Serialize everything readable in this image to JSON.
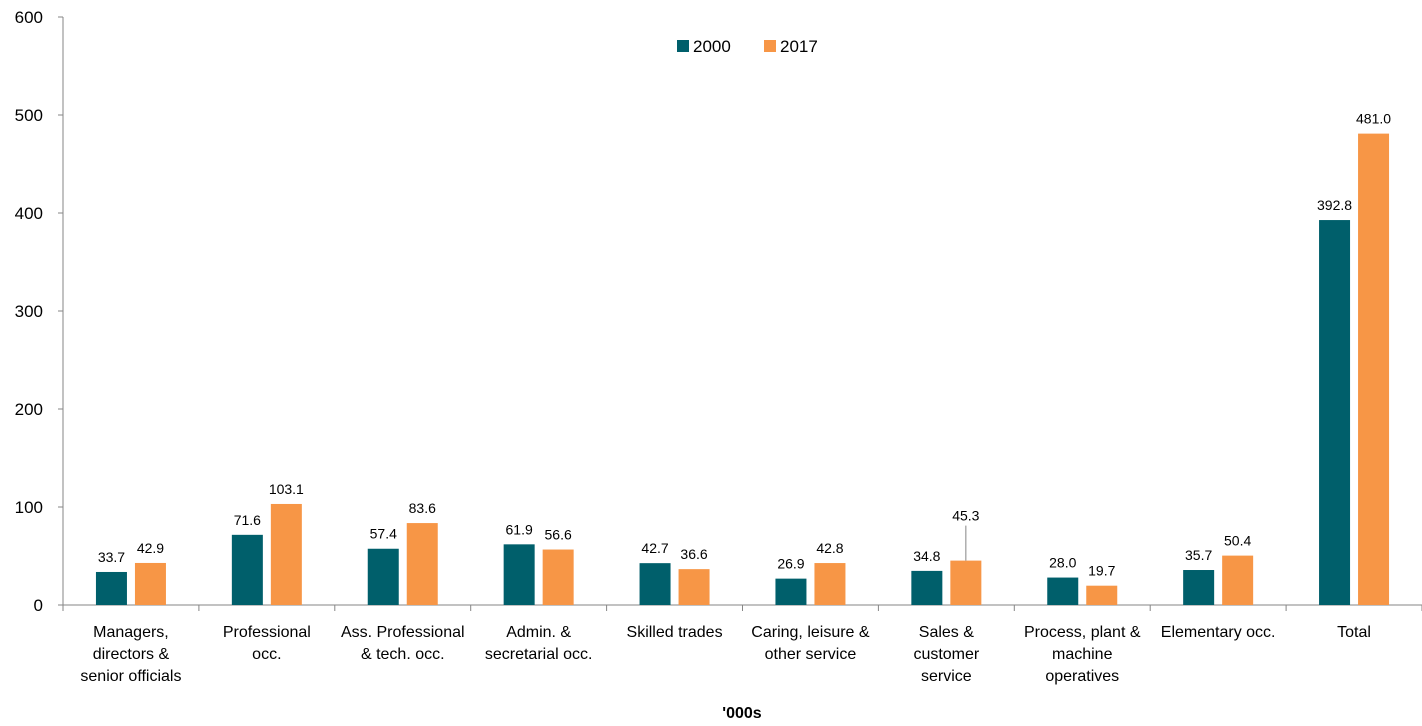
{
  "chart_data": {
    "type": "bar",
    "categories": [
      [
        "Managers,",
        "directors &",
        "senior officials"
      ],
      [
        "Professional",
        "occ."
      ],
      [
        "Ass. Professional",
        "& tech. occ."
      ],
      [
        "Admin. &",
        "secretarial occ."
      ],
      [
        "Skilled trades"
      ],
      [
        "Caring, leisure &",
        "other service"
      ],
      [
        "Sales &",
        "customer",
        "service"
      ],
      [
        "Process, plant &",
        "machine",
        "operatives"
      ],
      [
        "Elementary occ."
      ],
      [
        "Total"
      ]
    ],
    "series": [
      {
        "name": "2000",
        "color": "#005F6B",
        "values": [
          33.7,
          71.6,
          57.4,
          61.9,
          42.7,
          26.9,
          34.8,
          28.0,
          35.7,
          392.8
        ],
        "labels": [
          "33.7",
          "71.6",
          "57.4",
          "61.9",
          "42.7",
          "26.9",
          "34.8",
          "28.0",
          "35.7",
          "392.8"
        ]
      },
      {
        "name": "2017",
        "color": "#F79646",
        "values": [
          42.9,
          103.1,
          83.6,
          56.6,
          36.6,
          42.8,
          45.3,
          19.7,
          50.4,
          481.0
        ],
        "labels": [
          "42.9",
          "103.1",
          "83.6",
          "56.6",
          "36.6",
          "42.8",
          "45.3",
          "19.7",
          "50.4",
          "481.0"
        ]
      }
    ],
    "title": "",
    "xlabel": "'000s",
    "ylabel": "",
    "ylim": [
      0,
      600
    ],
    "yticks": [
      0,
      100,
      200,
      300,
      400,
      500,
      600
    ],
    "grid": false,
    "legend": "top-center"
  }
}
